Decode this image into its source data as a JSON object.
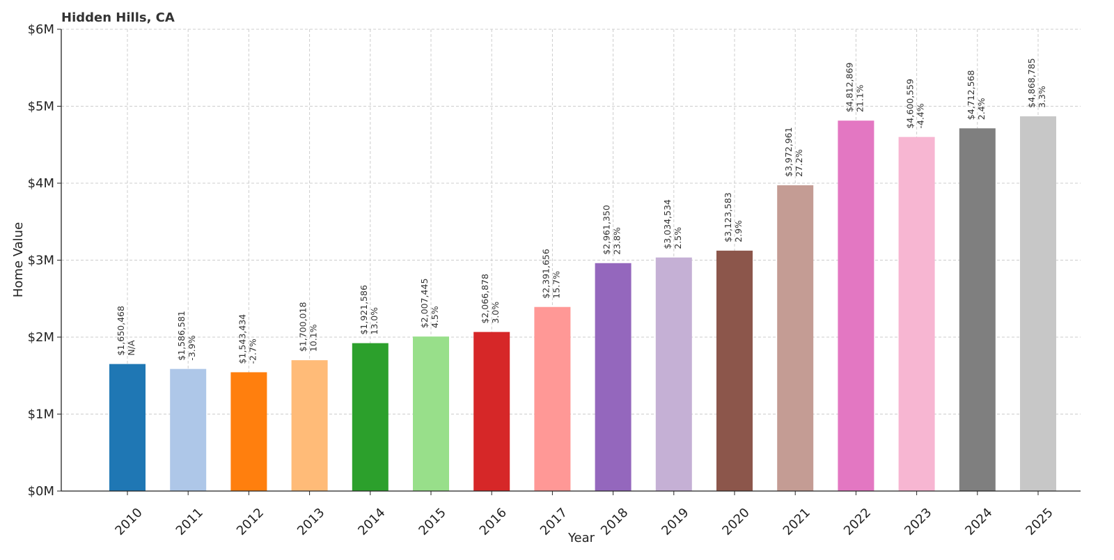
{
  "chart_data": {
    "type": "bar",
    "title": "Hidden Hills, CA",
    "xlabel": "Year",
    "ylabel": "Home Value",
    "ylim": [
      0,
      6000000
    ],
    "yticks": [
      0,
      1000000,
      2000000,
      3000000,
      4000000,
      5000000,
      6000000
    ],
    "ytick_labels": [
      "$0M",
      "$1M",
      "$2M",
      "$3M",
      "$4M",
      "$5M",
      "$6M"
    ],
    "grid": true,
    "categories": [
      "2010",
      "2011",
      "2012",
      "2013",
      "2014",
      "2015",
      "2016",
      "2017",
      "2018",
      "2019",
      "2020",
      "2021",
      "2022",
      "2023",
      "2024",
      "2025"
    ],
    "values": [
      1650468,
      1586581,
      1543434,
      1700018,
      1921586,
      2007445,
      2066878,
      2391656,
      2961350,
      3034534,
      3123583,
      3972961,
      4812869,
      4600559,
      4712568,
      4868785
    ],
    "value_labels": [
      "$1,650,468",
      "$1,586,581",
      "$1,543,434",
      "$1,700,018",
      "$1,921,586",
      "$2,007,445",
      "$2,066,878",
      "$2,391,656",
      "$2,961,350",
      "$3,034,534",
      "$3,123,583",
      "$3,972,961",
      "$4,812,869",
      "$4,600,559",
      "$4,712,568",
      "$4,868,785"
    ],
    "change_labels": [
      "N/A",
      "-3.9%",
      "-2.7%",
      "10.1%",
      "13.0%",
      "4.5%",
      "3.0%",
      "15.7%",
      "23.8%",
      "2.5%",
      "2.9%",
      "27.2%",
      "21.1%",
      "-4.4%",
      "2.4%",
      "3.3%"
    ],
    "colors": [
      "#1f77b4",
      "#aec7e8",
      "#ff7f0e",
      "#ffbb78",
      "#2ca02c",
      "#98df8a",
      "#d62728",
      "#ff9896",
      "#9467bd",
      "#c5b0d5",
      "#8c564b",
      "#c49c94",
      "#e377c2",
      "#f7b6d2",
      "#7f7f7f",
      "#c7c7c7"
    ]
  }
}
